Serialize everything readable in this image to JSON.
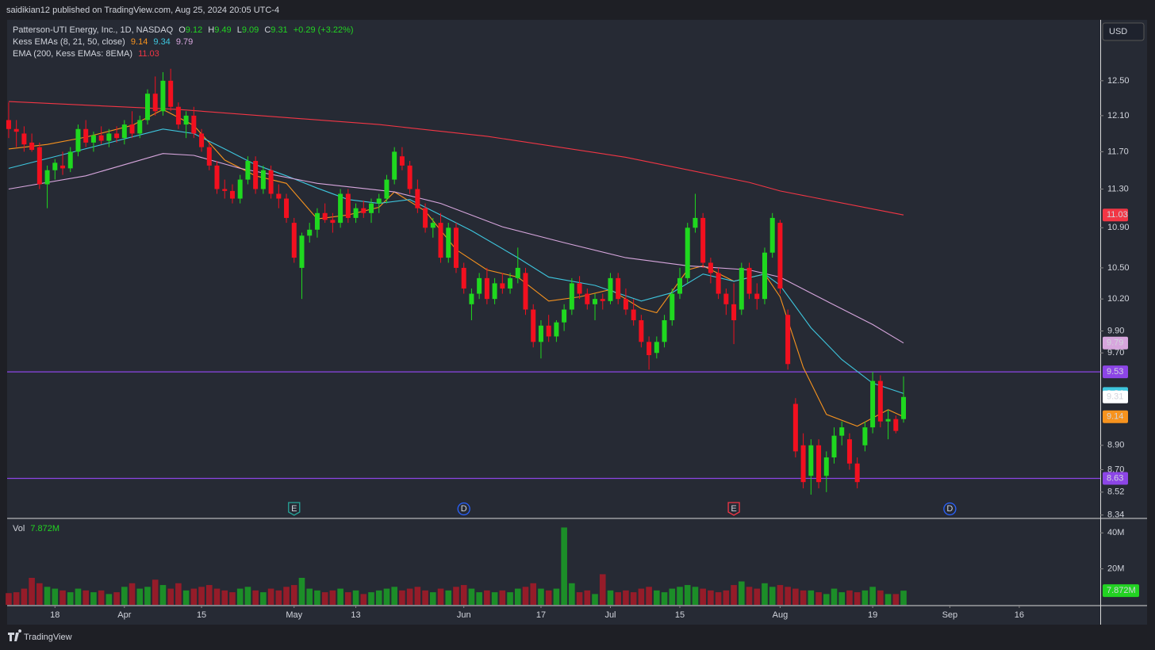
{
  "header": {
    "published": "saidikian12 published on TradingView.com, Aug 25, 2024 20:05 UTC-4",
    "currency": "USD",
    "footer": "TradingView"
  },
  "chart_data": {
    "type": "candlestick",
    "log_scale": true,
    "grid": false,
    "legend": {
      "symbol": "Patterson-UTI Energy, Inc., 1D, NASDAQ",
      "ohlc_labels": [
        "O",
        "H",
        "L",
        "C"
      ],
      "change": "+0.29 (+3.22%)",
      "kess": "Kess EMAs (8, 21, 50, close)",
      "ema200": "EMA (200, Kess EMAs: 8EMA)",
      "vol": "Vol"
    },
    "up_color": "#1fd81f",
    "down_color": "#f2101f",
    "volume_up_color": "#1c8e28",
    "volume_down_color": "#951c29",
    "xlim": [
      -0.2,
      141.5
    ],
    "xticks": [
      {
        "value": 6,
        "label": "18"
      },
      {
        "value": 15,
        "label": "Apr"
      },
      {
        "value": 25,
        "label": "15"
      },
      {
        "value": 37,
        "label": "May"
      },
      {
        "value": 45,
        "label": "13"
      },
      {
        "value": 59,
        "label": "Jun"
      },
      {
        "value": 69,
        "label": "17"
      },
      {
        "value": 78,
        "label": "Jul"
      },
      {
        "value": 87,
        "label": "15"
      },
      {
        "value": 100,
        "label": "Aug"
      },
      {
        "value": 112,
        "label": "19"
      },
      {
        "value": 122,
        "label": "Sep"
      },
      {
        "value": 131,
        "label": "16"
      }
    ],
    "ylim": [
      8.32,
      13.23
    ],
    "yticks": [
      {
        "value": 12.5,
        "label": "12.50"
      },
      {
        "value": 12.1,
        "label": "12.10"
      },
      {
        "value": 11.7,
        "label": "11.70"
      },
      {
        "value": 11.3,
        "label": "11.30"
      },
      {
        "value": 10.9,
        "label": "10.90"
      },
      {
        "value": 10.5,
        "label": "10.50"
      },
      {
        "value": 10.2,
        "label": "10.20"
      },
      {
        "value": 9.9,
        "label": "9.90"
      },
      {
        "value": 9.7,
        "label": "9.70"
      },
      {
        "value": 8.9,
        "label": "8.90"
      },
      {
        "value": 8.7,
        "label": "8.70"
      },
      8.52,
      8.34
    ],
    "ohlc": [
      [
        12.05,
        12.25,
        11.85,
        11.95
      ],
      [
        11.95,
        12.05,
        11.75,
        11.92
      ],
      [
        11.9,
        11.98,
        11.7,
        11.78
      ],
      [
        11.8,
        11.9,
        11.7,
        11.72
      ],
      [
        11.75,
        11.8,
        11.3,
        11.35
      ],
      [
        11.35,
        11.55,
        11.1,
        11.5
      ],
      [
        11.5,
        11.62,
        11.4,
        11.58
      ],
      [
        11.55,
        11.7,
        11.45,
        11.52
      ],
      [
        11.52,
        11.75,
        11.48,
        11.7
      ],
      [
        11.7,
        12.0,
        11.65,
        11.95
      ],
      [
        11.95,
        12.05,
        11.75,
        11.8
      ],
      [
        11.8,
        11.92,
        11.7,
        11.88
      ],
      [
        11.88,
        11.98,
        11.78,
        11.82
      ],
      [
        11.82,
        11.95,
        11.75,
        11.9
      ],
      [
        11.9,
        11.98,
        11.8,
        11.85
      ],
      [
        11.85,
        12.05,
        11.78,
        12.0
      ],
      [
        12.0,
        12.15,
        11.85,
        11.9
      ],
      [
        11.9,
        12.1,
        11.85,
        12.05
      ],
      [
        12.05,
        12.4,
        12.0,
        12.35
      ],
      [
        12.35,
        12.55,
        12.1,
        12.15
      ],
      [
        12.15,
        12.6,
        12.1,
        12.5
      ],
      [
        12.5,
        12.64,
        12.15,
        12.2
      ],
      [
        12.2,
        12.25,
        11.95,
        12.0
      ],
      [
        12.0,
        12.15,
        11.85,
        12.1
      ],
      [
        12.1,
        12.2,
        11.85,
        11.9
      ],
      [
        11.9,
        11.95,
        11.7,
        11.75
      ],
      [
        11.75,
        11.8,
        11.5,
        11.55
      ],
      [
        11.55,
        11.6,
        11.25,
        11.3
      ],
      [
        11.3,
        11.4,
        11.2,
        11.28
      ],
      [
        11.28,
        11.35,
        11.15,
        11.2
      ],
      [
        11.2,
        11.45,
        11.15,
        11.4
      ],
      [
        11.4,
        11.65,
        11.35,
        11.6
      ],
      [
        11.6,
        11.65,
        11.25,
        11.3
      ],
      [
        11.3,
        11.55,
        11.25,
        11.5
      ],
      [
        11.5,
        11.55,
        11.2,
        11.25
      ],
      [
        11.25,
        11.35,
        11.1,
        11.2
      ],
      [
        11.2,
        11.25,
        10.95,
        11.0
      ],
      [
        10.95,
        11.0,
        10.55,
        10.6
      ],
      [
        10.5,
        10.85,
        10.2,
        10.82
      ],
      [
        10.82,
        10.95,
        10.75,
        10.88
      ],
      [
        10.88,
        11.1,
        10.8,
        11.05
      ],
      [
        11.05,
        11.15,
        10.95,
        10.98
      ],
      [
        10.98,
        11.05,
        10.85,
        10.95
      ],
      [
        10.95,
        11.3,
        10.9,
        11.25
      ],
      [
        11.25,
        11.3,
        10.95,
        11.0
      ],
      [
        11.0,
        11.15,
        10.95,
        11.1
      ],
      [
        11.1,
        11.18,
        11.0,
        11.05
      ],
      [
        11.05,
        11.2,
        10.95,
        11.15
      ],
      [
        11.15,
        11.25,
        11.05,
        11.2
      ],
      [
        11.2,
        11.45,
        11.15,
        11.4
      ],
      [
        11.4,
        11.75,
        11.35,
        11.7
      ],
      [
        11.65,
        11.75,
        11.5,
        11.55
      ],
      [
        11.55,
        11.6,
        11.25,
        11.3
      ],
      [
        11.3,
        11.4,
        11.05,
        11.1
      ],
      [
        11.1,
        11.15,
        10.85,
        10.9
      ],
      [
        10.9,
        11.0,
        10.8,
        10.95
      ],
      [
        10.95,
        11.05,
        10.55,
        10.6
      ],
      [
        10.6,
        10.95,
        10.55,
        10.9
      ],
      [
        10.9,
        10.95,
        10.45,
        10.5
      ],
      [
        10.5,
        10.55,
        10.25,
        10.3
      ],
      [
        10.15,
        10.3,
        10.0,
        10.25
      ],
      [
        10.25,
        10.45,
        10.2,
        10.4
      ],
      [
        10.4,
        10.5,
        10.15,
        10.2
      ],
      [
        10.2,
        10.4,
        10.15,
        10.35
      ],
      [
        10.35,
        10.45,
        10.25,
        10.3
      ],
      [
        10.3,
        10.45,
        10.25,
        10.4
      ],
      [
        10.4,
        10.7,
        10.35,
        10.5
      ],
      [
        10.45,
        10.5,
        10.05,
        10.1
      ],
      [
        10.1,
        10.15,
        9.75,
        9.8
      ],
      [
        9.8,
        10.0,
        9.65,
        9.95
      ],
      [
        9.95,
        10.05,
        9.8,
        9.85
      ],
      [
        9.85,
        10.0,
        9.8,
        9.98
      ],
      [
        9.98,
        10.15,
        9.9,
        10.1
      ],
      [
        10.1,
        10.4,
        10.05,
        10.35
      ],
      [
        10.35,
        10.42,
        10.2,
        10.25
      ],
      [
        10.25,
        10.3,
        10.1,
        10.15
      ],
      [
        10.15,
        10.25,
        10.0,
        10.2
      ],
      [
        10.2,
        10.25,
        10.1,
        10.18
      ],
      [
        10.18,
        10.45,
        10.15,
        10.4
      ],
      [
        10.4,
        10.45,
        10.15,
        10.2
      ],
      [
        10.2,
        10.3,
        10.05,
        10.1
      ],
      [
        10.1,
        10.2,
        9.95,
        10.0
      ],
      [
        10.0,
        10.05,
        9.75,
        9.8
      ],
      [
        9.8,
        9.85,
        9.55,
        9.68
      ],
      [
        9.7,
        9.85,
        9.65,
        9.8
      ],
      [
        9.8,
        10.05,
        9.75,
        10.0
      ],
      [
        10.0,
        10.3,
        9.95,
        10.25
      ],
      [
        10.25,
        10.5,
        10.2,
        10.4
      ],
      [
        10.4,
        10.95,
        10.35,
        10.9
      ],
      [
        10.9,
        11.25,
        10.85,
        11.0
      ],
      [
        11.0,
        11.05,
        10.5,
        10.55
      ],
      [
        10.55,
        10.6,
        10.35,
        10.45
      ],
      [
        10.45,
        10.5,
        10.2,
        10.25
      ],
      [
        10.25,
        10.3,
        10.05,
        10.15
      ],
      [
        10.15,
        10.35,
        9.78,
        10.0
      ],
      [
        10.1,
        10.55,
        10.05,
        10.5
      ],
      [
        10.5,
        10.55,
        10.2,
        10.25
      ],
      [
        10.25,
        10.35,
        10.1,
        10.2
      ],
      [
        10.2,
        10.7,
        10.15,
        10.65
      ],
      [
        10.65,
        11.05,
        10.6,
        11.0
      ],
      [
        10.95,
        10.98,
        10.25,
        10.3
      ],
      [
        10.05,
        10.1,
        9.55,
        9.6
      ],
      [
        9.25,
        9.3,
        8.8,
        8.85
      ],
      [
        8.9,
        9.0,
        8.55,
        8.6
      ],
      [
        8.65,
        8.95,
        8.5,
        8.9
      ],
      [
        8.9,
        8.95,
        8.55,
        8.6
      ],
      [
        8.65,
        8.85,
        8.52,
        8.8
      ],
      [
        8.8,
        9.05,
        8.75,
        8.98
      ],
      [
        8.98,
        9.1,
        8.9,
        9.05
      ],
      [
        8.95,
        9.0,
        8.7,
        8.75
      ],
      [
        8.75,
        8.8,
        8.55,
        8.6
      ],
      [
        8.9,
        9.1,
        8.85,
        9.05
      ],
      [
        9.05,
        9.53,
        9.0,
        9.45
      ],
      [
        9.45,
        9.5,
        9.05,
        9.1
      ],
      [
        9.1,
        9.2,
        8.95,
        9.12
      ],
      [
        9.12,
        9.15,
        9.0,
        9.02
      ],
      [
        9.12,
        9.49,
        9.09,
        9.31
      ]
    ],
    "volume": [
      6.5,
      7,
      9,
      15,
      12,
      10,
      9,
      8,
      7,
      9,
      8,
      7,
      8,
      6,
      7,
      10,
      12,
      9,
      10,
      14,
      11,
      9,
      12,
      8,
      9,
      10,
      11,
      9,
      8,
      7,
      9,
      10,
      8,
      7,
      9,
      8,
      10,
      11,
      15,
      9,
      8,
      7,
      8,
      9,
      7,
      8,
      6,
      7,
      8,
      9,
      10,
      8,
      9,
      10,
      8,
      7,
      9,
      8,
      10,
      11,
      9,
      7,
      8,
      7,
      8,
      7,
      9,
      10,
      12,
      9,
      8,
      9,
      43,
      12,
      7,
      8,
      6,
      17,
      8,
      7,
      8,
      7,
      9,
      10,
      8,
      7,
      9,
      10,
      11,
      10,
      9,
      8,
      7,
      8,
      11,
      13,
      10,
      9,
      12,
      10,
      11,
      10,
      9,
      8,
      8,
      7,
      6,
      9,
      7,
      8,
      7,
      8,
      10,
      8,
      6,
      6,
      7.872
    ],
    "last_volume_label": "7.872M",
    "vol_ylim": [
      0,
      47.6
    ],
    "vol_yticks": [
      {
        "value": 40,
        "label": "40M"
      },
      {
        "value": 20,
        "label": "20M"
      }
    ],
    "ema_lines": [
      {
        "color": "#f7931e",
        "x": [
          0,
          5,
          10,
          16,
          20,
          24,
          28,
          32,
          36,
          40,
          44,
          48,
          50,
          54,
          58,
          62,
          66,
          70,
          74,
          78,
          82,
          84,
          88,
          90,
          94,
          98,
          100,
          103,
          106,
          110,
          114,
          116
        ],
        "values": [
          11.73,
          11.78,
          11.86,
          11.99,
          12.17,
          11.99,
          11.61,
          11.44,
          11.36,
          10.99,
          11.03,
          11.11,
          11.27,
          11.07,
          10.68,
          10.48,
          10.41,
          10.18,
          10.22,
          10.29,
          10.11,
          10.07,
          10.48,
          10.52,
          10.37,
          10.44,
          10.22,
          9.57,
          9.16,
          9.06,
          9.2,
          9.14
        ]
      },
      {
        "color": "#3ec6de",
        "x": [
          0,
          8,
          20,
          24,
          28,
          32,
          36,
          40,
          44,
          48,
          52,
          56,
          60,
          66,
          70,
          76,
          82,
          86,
          90,
          94,
          98,
          100,
          104,
          108,
          112,
          116
        ],
        "values": [
          11.52,
          11.69,
          11.95,
          11.9,
          11.73,
          11.56,
          11.44,
          11.31,
          11.19,
          11.15,
          11.19,
          11.03,
          10.87,
          10.6,
          10.41,
          10.33,
          10.18,
          10.26,
          10.44,
          10.37,
          10.44,
          10.33,
          9.93,
          9.64,
          9.43,
          9.34
        ]
      },
      {
        "color": "#d7a6dd",
        "x": [
          0,
          10,
          20,
          24,
          30,
          40,
          50,
          56,
          64,
          72,
          80,
          88,
          96,
          100,
          106,
          112,
          116
        ],
        "values": [
          11.3,
          11.44,
          11.68,
          11.66,
          11.52,
          11.36,
          11.27,
          11.15,
          10.91,
          10.75,
          10.6,
          10.52,
          10.48,
          10.41,
          10.18,
          9.96,
          9.79
        ]
      },
      {
        "color": "#f23645",
        "x": [
          0,
          22,
          48,
          62,
          80,
          96,
          100,
          116
        ],
        "values": [
          12.26,
          12.17,
          12.0,
          11.87,
          11.64,
          11.37,
          11.28,
          11.03
        ]
      }
    ],
    "hlines": [
      {
        "value": 9.53,
        "color": "#8c45e6"
      },
      {
        "value": 8.63,
        "color": "#8c45e6"
      }
    ],
    "events": [
      {
        "x": 37,
        "label": "E",
        "color": "#26a69a"
      },
      {
        "x": 59,
        "label": "D",
        "color": "#2962ff"
      },
      {
        "x": 94,
        "label": "E",
        "color": "#f23645"
      },
      {
        "x": 122,
        "label": "D",
        "color": "#2962ff"
      }
    ]
  }
}
